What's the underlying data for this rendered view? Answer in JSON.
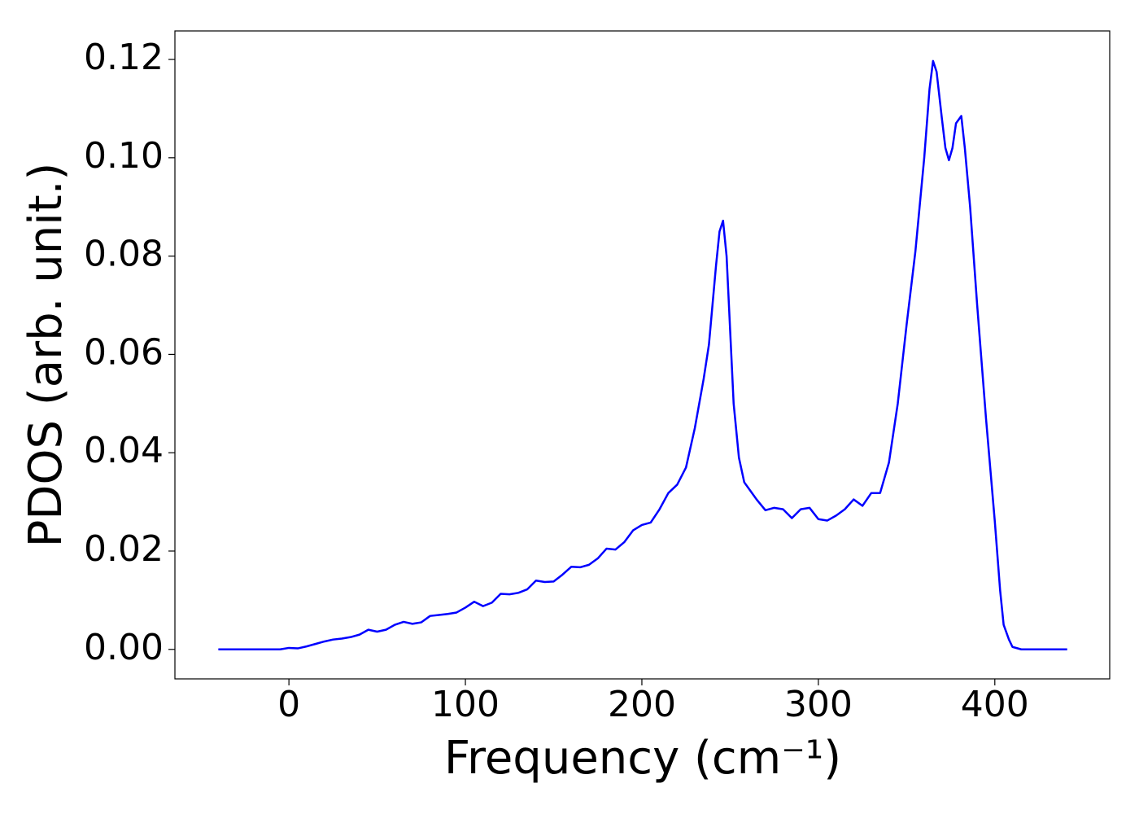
{
  "chart_data": {
    "type": "line",
    "xlabel": "Frequency (cm⁻¹)",
    "ylabel": "PDOS (arb. unit.)",
    "x": [
      -40,
      -35,
      -30,
      -25,
      -20,
      -15,
      -10,
      -5,
      0,
      5,
      10,
      15,
      20,
      25,
      30,
      35,
      40,
      45,
      50,
      55,
      60,
      65,
      70,
      75,
      80,
      85,
      90,
      95,
      100,
      105,
      110,
      115,
      120,
      125,
      130,
      135,
      140,
      145,
      150,
      155,
      160,
      165,
      170,
      175,
      180,
      185,
      190,
      195,
      200,
      205,
      210,
      215,
      220,
      225,
      230,
      235,
      238,
      240,
      242,
      244,
      246,
      248,
      250,
      252,
      255,
      258,
      262,
      265,
      270,
      275,
      280,
      285,
      290,
      295,
      300,
      305,
      310,
      315,
      320,
      325,
      330,
      335,
      340,
      345,
      350,
      355,
      360,
      363,
      365,
      367,
      370,
      372,
      374,
      376,
      378,
      381,
      383,
      386,
      390,
      395,
      400,
      403,
      405,
      408,
      410,
      415,
      420,
      425,
      430,
      435,
      441
    ],
    "series": [
      {
        "color": "#0000ff",
        "values": [
          0,
          0,
          0,
          0,
          0,
          0,
          0,
          0,
          0.0003,
          0.0002,
          0.0006,
          0.0011,
          0.0016,
          0.002,
          0.0022,
          0.0025,
          0.003,
          0.004,
          0.0036,
          0.004,
          0.005,
          0.0056,
          0.0052,
          0.0055,
          0.0068,
          0.007,
          0.0072,
          0.0075,
          0.0085,
          0.0097,
          0.0088,
          0.0095,
          0.0113,
          0.0112,
          0.0115,
          0.0122,
          0.014,
          0.0137,
          0.0138,
          0.0152,
          0.0168,
          0.0167,
          0.0172,
          0.0185,
          0.0205,
          0.0203,
          0.0218,
          0.0242,
          0.0253,
          0.0258,
          0.0285,
          0.0318,
          0.0335,
          0.037,
          0.045,
          0.055,
          0.062,
          0.07,
          0.078,
          0.085,
          0.0872,
          0.08,
          0.065,
          0.05,
          0.039,
          0.034,
          0.032,
          0.0305,
          0.0283,
          0.0288,
          0.0285,
          0.0267,
          0.0285,
          0.0288,
          0.0265,
          0.0262,
          0.0272,
          0.0285,
          0.0305,
          0.0292,
          0.0318,
          0.0318,
          0.038,
          0.05,
          0.066,
          0.081,
          0.1,
          0.114,
          0.1197,
          0.1175,
          0.108,
          0.102,
          0.0995,
          0.102,
          0.107,
          0.1085,
          0.102,
          0.09,
          0.07,
          0.047,
          0.026,
          0.012,
          0.005,
          0.002,
          0.0005,
          0,
          0,
          0,
          0,
          0,
          0
        ]
      }
    ],
    "xlim": [
      -64.6,
      465.1
    ],
    "ylim": [
      -0.006,
      0.1258
    ],
    "xticks": [
      0,
      100,
      200,
      300,
      400
    ],
    "yticks": [
      {
        "value": 0,
        "label": "0.00"
      },
      {
        "value": 0.02,
        "label": "0.02"
      },
      {
        "value": 0.04,
        "label": "0.04"
      },
      {
        "value": 0.06,
        "label": "0.06"
      },
      {
        "value": 0.08,
        "label": "0.08"
      },
      {
        "value": 0.1,
        "label": "0.10"
      },
      {
        "value": 0.12,
        "label": "0.12"
      }
    ]
  }
}
